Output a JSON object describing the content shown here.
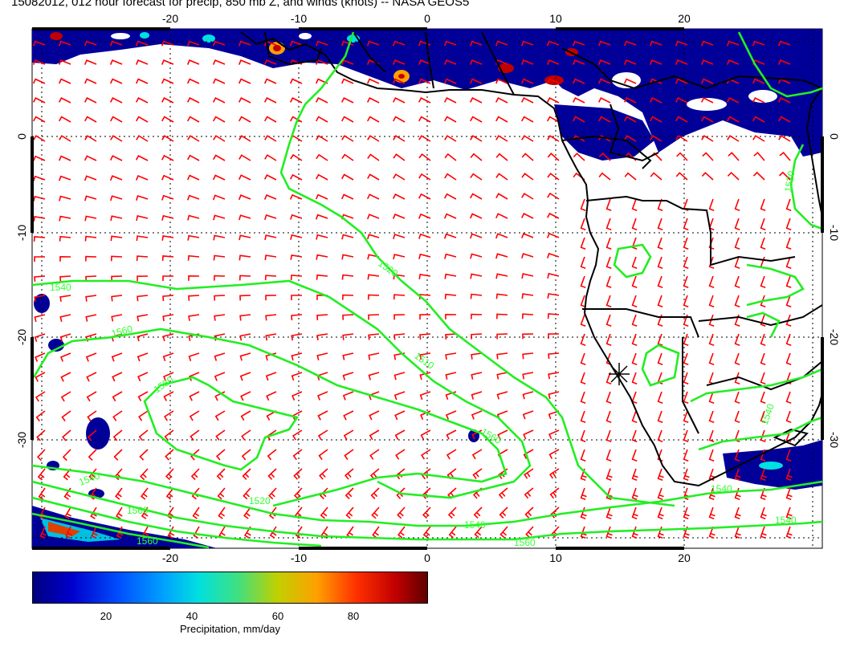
{
  "title": "15082012, 012 hour forecast for precip, 850 mb Z, and winds (knots) -- NASA GEOS5",
  "map": {
    "lon_ticks": [
      "-20",
      "-10",
      "0",
      "10",
      "20"
    ],
    "lat_ticks": [
      "0",
      "-10",
      "-20",
      "-30"
    ],
    "contour_labels": [
      "1540",
      "1560",
      "1520",
      "1510",
      "1560",
      "1540",
      "1560",
      "1520",
      "1540",
      "1540",
      "1540",
      "1560",
      "1580",
      "1560",
      "1540",
      "1520"
    ],
    "colors": {
      "contour": "#22ee22",
      "wind_barb": "#ff0000",
      "coast": "#000000",
      "grid": "#000000"
    },
    "icons": {
      "station_marker": "asterisk-icon"
    }
  },
  "colorbar": {
    "ticks": [
      "20",
      "40",
      "60",
      "80"
    ],
    "label": "Precipitation, mm/day",
    "colors": [
      "#000080",
      "#0000cd",
      "#0050ff",
      "#00a0ff",
      "#00e0e0",
      "#40e080",
      "#c0d000",
      "#ffa000",
      "#ff3000",
      "#c00000",
      "#600000"
    ]
  }
}
